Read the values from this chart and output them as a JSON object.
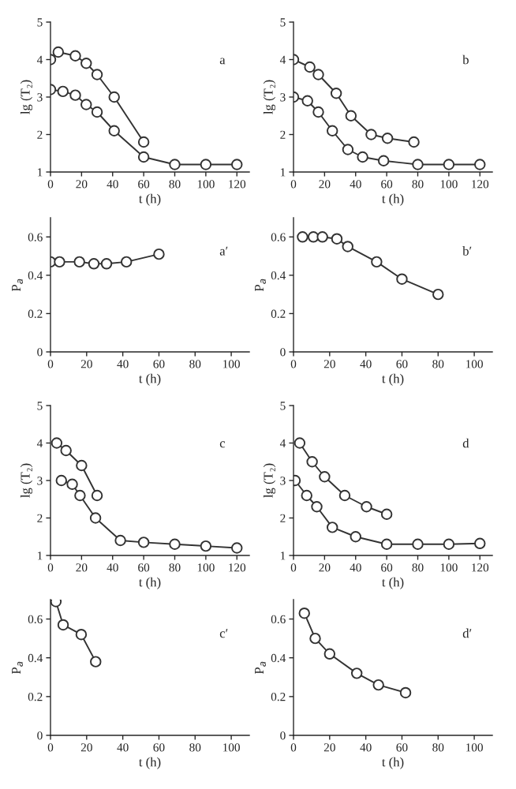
{
  "chart_data": [
    {
      "type": "line",
      "xlabel": "t (h)",
      "ylabel": "lg (T₂)",
      "xlim": [
        0,
        128
      ],
      "ylim": [
        1,
        5
      ],
      "xticks": [
        0,
        20,
        40,
        60,
        80,
        100,
        120
      ],
      "yticks": [
        1,
        2,
        3,
        4,
        5
      ],
      "marker": "circle",
      "annotations": [
        "a"
      ],
      "series": [
        {
          "color": "#333333",
          "x": [
            0,
            5,
            16,
            23,
            30,
            41,
            60
          ],
          "values": [
            4.0,
            4.2,
            4.1,
            3.9,
            3.6,
            3.0,
            1.8
          ]
        },
        {
          "color": "#333333",
          "x": [
            0,
            8,
            16,
            23,
            30,
            41,
            60,
            80,
            100,
            120
          ],
          "values": [
            3.2,
            3.15,
            3.05,
            2.8,
            2.6,
            2.1,
            1.4,
            1.2,
            1.2,
            1.2
          ]
        }
      ]
    },
    {
      "type": "line",
      "xlabel": "t (h)",
      "ylabel": "lg (T₂)",
      "xlim": [
        0,
        128
      ],
      "ylim": [
        1,
        5
      ],
      "xticks": [
        0,
        20,
        40,
        60,
        80,
        100,
        120
      ],
      "yticks": [
        1,
        2,
        3,
        4,
        5
      ],
      "marker": "circle",
      "annotations": [
        "b"
      ],
      "series": [
        {
          "color": "#333333",
          "x": [
            0,
            10.5,
            16,
            27.5,
            37,
            50,
            60.5,
            77.5
          ],
          "values": [
            4.0,
            3.8,
            3.6,
            3.1,
            2.5,
            2.0,
            1.9,
            1.8
          ]
        },
        {
          "color": "#333333",
          "x": [
            0,
            9,
            16,
            25,
            35,
            44.5,
            58,
            80,
            100,
            120
          ],
          "values": [
            3.0,
            2.9,
            2.6,
            2.1,
            1.6,
            1.4,
            1.3,
            1.2,
            1.2,
            1.2
          ]
        }
      ]
    },
    {
      "type": "line",
      "xlabel": "t (h)",
      "ylabel": "P$_{a}$",
      "xlim": [
        0,
        110
      ],
      "ylim": [
        0,
        0.7
      ],
      "xticks": [
        0,
        20,
        40,
        60,
        80,
        100
      ],
      "yticks": [
        0,
        0.2,
        0.4,
        0.6
      ],
      "marker": "circle",
      "annotations": [
        "a′"
      ],
      "series": [
        {
          "color": "#333333",
          "x": [
            0,
            5,
            16,
            24,
            31,
            42,
            60
          ],
          "values": [
            0.47,
            0.47,
            0.47,
            0.46,
            0.46,
            0.47,
            0.51
          ]
        }
      ]
    },
    {
      "type": "line",
      "xlabel": "t (h)",
      "ylabel": "P$_{a}$",
      "xlim": [
        0,
        110
      ],
      "ylim": [
        0,
        0.7
      ],
      "xticks": [
        0,
        20,
        40,
        60,
        80,
        100
      ],
      "yticks": [
        0,
        0.2,
        0.4,
        0.6
      ],
      "marker": "circle",
      "annotations": [
        "b′"
      ],
      "series": [
        {
          "color": "#333333",
          "x": [
            5,
            11,
            16,
            24,
            30,
            46,
            60,
            80
          ],
          "values": [
            0.6,
            0.6,
            0.6,
            0.59,
            0.55,
            0.47,
            0.38,
            0.3
          ]
        }
      ]
    },
    {
      "type": "line",
      "xlabel": "t (h)",
      "ylabel": "lg (T₂)",
      "xlim": [
        0,
        128
      ],
      "ylim": [
        1,
        5
      ],
      "xticks": [
        0,
        20,
        40,
        60,
        80,
        100,
        120
      ],
      "yticks": [
        1,
        2,
        3,
        4,
        5
      ],
      "marker": "circle",
      "annotations": [
        "c"
      ],
      "series": [
        {
          "color": "#333333",
          "x": [
            4,
            10,
            20,
            30
          ],
          "values": [
            4.0,
            3.8,
            3.4,
            2.6
          ]
        },
        {
          "color": "#333333",
          "x": [
            7,
            14,
            19,
            29,
            45,
            60,
            80,
            100,
            120
          ],
          "values": [
            3.0,
            2.9,
            2.6,
            2.0,
            1.4,
            1.35,
            1.3,
            1.25,
            1.2
          ]
        }
      ]
    },
    {
      "type": "line",
      "xlabel": "t (h)",
      "ylabel": "lg (T₂)",
      "xlim": [
        0,
        128
      ],
      "ylim": [
        1,
        5
      ],
      "xticks": [
        0,
        20,
        40,
        60,
        80,
        100,
        120
      ],
      "yticks": [
        1,
        2,
        3,
        4,
        5
      ],
      "marker": "circle",
      "annotations": [
        "d"
      ],
      "series": [
        {
          "color": "#333333",
          "x": [
            4,
            12,
            20,
            33,
            47,
            60
          ],
          "values": [
            4.0,
            3.5,
            3.1,
            2.6,
            2.3,
            2.1
          ]
        },
        {
          "color": "#333333",
          "x": [
            1,
            8.5,
            15,
            25,
            40,
            60,
            80,
            100,
            120
          ],
          "values": [
            3.0,
            2.6,
            2.3,
            1.75,
            1.5,
            1.3,
            1.3,
            1.3,
            1.32
          ]
        }
      ]
    },
    {
      "type": "line",
      "xlabel": "t (h)",
      "ylabel": "P$_{a}$",
      "xlim": [
        0,
        110
      ],
      "ylim": [
        0,
        0.7
      ],
      "xticks": [
        0,
        20,
        40,
        60,
        80,
        100
      ],
      "yticks": [
        0,
        0.2,
        0.4,
        0.6
      ],
      "marker": "circle",
      "annotations": [
        "c′"
      ],
      "series": [
        {
          "color": "#333333",
          "x": [
            3,
            7,
            17,
            25
          ],
          "values": [
            0.69,
            0.57,
            0.52,
            0.38
          ]
        }
      ]
    },
    {
      "type": "line",
      "xlabel": "t (h)",
      "ylabel": "P$_{a}$",
      "xlim": [
        0,
        110
      ],
      "ylim": [
        0,
        0.7
      ],
      "xticks": [
        0,
        20,
        40,
        60,
        80,
        100
      ],
      "yticks": [
        0,
        0.2,
        0.4,
        0.6
      ],
      "marker": "circle",
      "annotations": [
        "d′"
      ],
      "series": [
        {
          "color": "#333333",
          "x": [
            6,
            12,
            20,
            35,
            47,
            62
          ],
          "values": [
            0.63,
            0.5,
            0.42,
            0.32,
            0.26,
            0.22
          ]
        }
      ]
    }
  ]
}
